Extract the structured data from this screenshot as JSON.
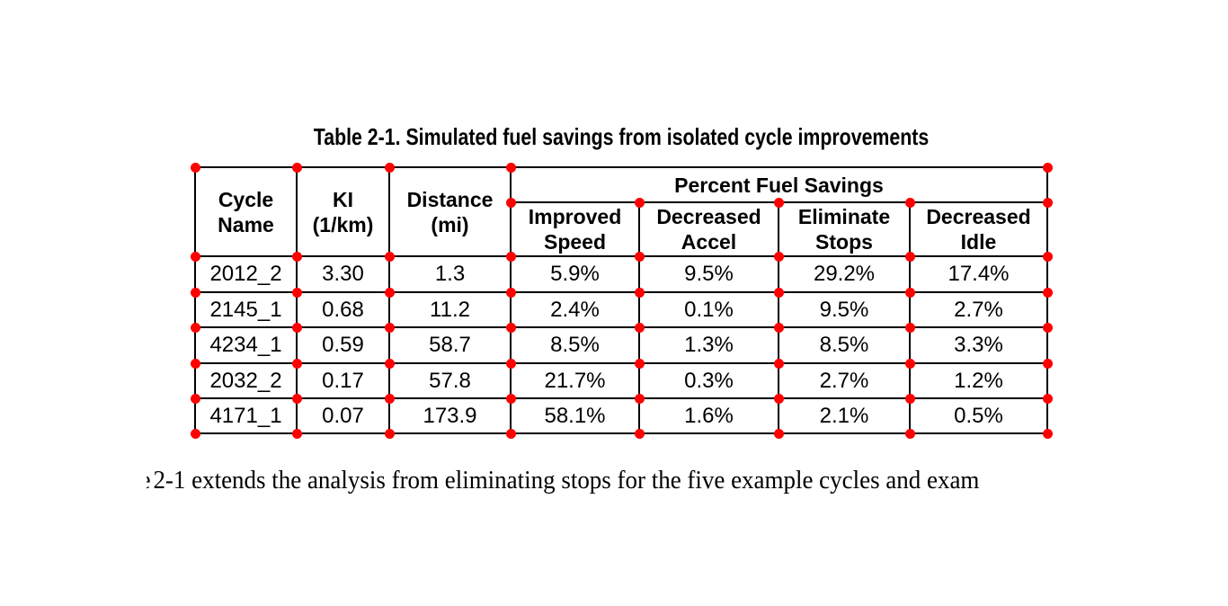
{
  "caption": "Table 2-1. Simulated fuel savings from isolated cycle improvements",
  "table": {
    "main_headers": [
      "Cycle\nName",
      "KI\n(1/km)",
      "Distance\n(mi)"
    ],
    "group_header": "Percent Fuel Savings",
    "sub_headers": [
      "Improved\nSpeed",
      "Decreased\nAccel",
      "Eliminate\nStops",
      "Decreased\nIdle"
    ],
    "rows": [
      [
        "2012_2",
        "3.30",
        "1.3",
        "5.9%",
        "9.5%",
        "29.2%",
        "17.4%"
      ],
      [
        "2145_1",
        "0.68",
        "11.2",
        "2.4%",
        "0.1%",
        "9.5%",
        "2.7%"
      ],
      [
        "4234_1",
        "0.59",
        "58.7",
        "8.5%",
        "1.3%",
        "8.5%",
        "3.3%"
      ],
      [
        "2032_2",
        "0.17",
        "57.8",
        "21.7%",
        "0.3%",
        "2.7%",
        "1.2%"
      ],
      [
        "4171_1",
        "0.07",
        "173.9",
        "58.1%",
        "1.6%",
        "2.1%",
        "0.5%"
      ]
    ]
  },
  "body": {
    "clipped_char": "e",
    "text": "2-1 extends the analysis from eliminating stops for the five example cycles and exam"
  },
  "colors": {
    "marker": "#ff0000",
    "grid": "#000000"
  }
}
